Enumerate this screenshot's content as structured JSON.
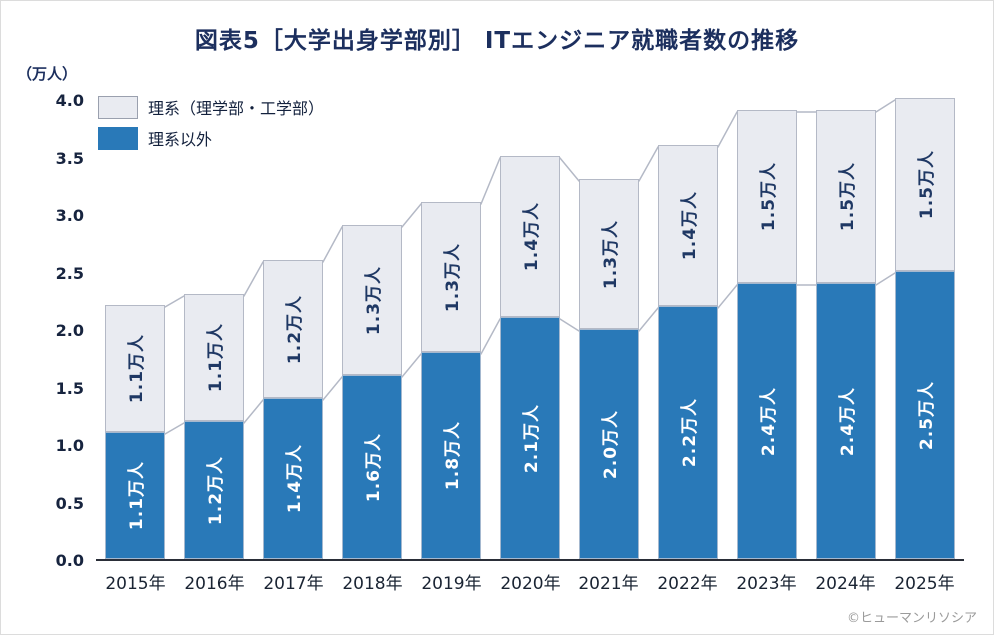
{
  "title": "図表5［大学出身学部別］ ITエンジニア就職者数の推移",
  "y_axis_unit": "（万人）",
  "copyright": "©ヒューマンリソシア",
  "legend": [
    {
      "label": "理系（理学部・工学部）",
      "color": "#e9ebf1"
    },
    {
      "label": "理系以外",
      "color": "#2979b8"
    }
  ],
  "colors": {
    "science_fill": "#e9ebf1",
    "nonscience_fill": "#2979b8",
    "connector_line": "#b4b9c6",
    "title_text": "#1c2f5e",
    "bar_label_on_gray": "#1f3864",
    "bar_label_on_blue": "#ffffff"
  },
  "chart_data": {
    "type": "bar",
    "stacked": true,
    "title": "図表5［大学出身学部別］ ITエンジニア就職者数の推移",
    "xlabel": "",
    "ylabel": "（万人）",
    "ylim": [
      0,
      4.0
    ],
    "ytick_labels": [
      "0.0",
      "0.5",
      "1.0",
      "1.5",
      "2.0",
      "2.5",
      "3.0",
      "3.5",
      "4.0"
    ],
    "grid": false,
    "legend_position": "top-left",
    "categories": [
      "2015年",
      "2016年",
      "2017年",
      "2018年",
      "2019年",
      "2020年",
      "2021年",
      "2022年",
      "2023年",
      "2024年",
      "2025年"
    ],
    "series": [
      {
        "name": "理系以外",
        "values": [
          1.1,
          1.2,
          1.4,
          1.6,
          1.8,
          2.1,
          2.0,
          2.2,
          2.4,
          2.4,
          2.5
        ],
        "labels": [
          "1.1万人",
          "1.2万人",
          "1.4万人",
          "1.6万人",
          "1.8万人",
          "2.1万人",
          "2.0万人",
          "2.2万人",
          "2.4万人",
          "2.4万人",
          "2.5万人"
        ],
        "color": "#2979b8"
      },
      {
        "name": "理系（理学部・工学部）",
        "values": [
          1.1,
          1.1,
          1.2,
          1.3,
          1.3,
          1.4,
          1.3,
          1.4,
          1.5,
          1.5,
          1.5
        ],
        "labels": [
          "1.1万人",
          "1.1万人",
          "1.2万人",
          "1.3万人",
          "1.3万人",
          "1.4万人",
          "1.3万人",
          "1.4万人",
          "1.5万人",
          "1.5万人",
          "1.5万人"
        ],
        "color": "#e9ebf1"
      }
    ]
  }
}
